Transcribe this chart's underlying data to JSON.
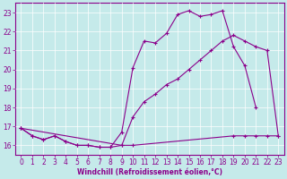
{
  "xlabel": "Windchill (Refroidissement éolien,°C)",
  "bg_color": "#c5eaea",
  "line_color": "#8b008b",
  "grid_color": "#ffffff",
  "xlim": [
    -0.5,
    23.5
  ],
  "ylim": [
    15.5,
    23.5
  ],
  "yticks": [
    16,
    17,
    18,
    19,
    20,
    21,
    22,
    23
  ],
  "xticks": [
    0,
    1,
    2,
    3,
    4,
    5,
    6,
    7,
    8,
    9,
    10,
    11,
    12,
    13,
    14,
    15,
    16,
    17,
    18,
    19,
    20,
    21,
    22,
    23
  ],
  "curve1_x": [
    0,
    1,
    2,
    3,
    4,
    5,
    6,
    7,
    8,
    9,
    10,
    11,
    12,
    13,
    14,
    15,
    16,
    17,
    18,
    19,
    20,
    21
  ],
  "curve1_y": [
    16.9,
    16.5,
    16.3,
    16.5,
    16.2,
    16.0,
    16.0,
    15.9,
    15.9,
    16.7,
    20.1,
    21.5,
    21.4,
    21.9,
    22.9,
    23.1,
    22.8,
    22.9,
    23.1,
    21.2,
    20.2,
    18.0
  ],
  "curve2_x": [
    0,
    1,
    2,
    3,
    4,
    5,
    6,
    7,
    8,
    9,
    10,
    19,
    20,
    21,
    22,
    23
  ],
  "curve2_y": [
    16.9,
    16.5,
    16.3,
    16.5,
    16.2,
    16.0,
    16.0,
    15.9,
    15.9,
    16.0,
    16.0,
    16.5,
    16.5,
    16.5,
    16.5,
    16.5
  ],
  "curve3_x": [
    0,
    9,
    10,
    11,
    12,
    13,
    14,
    15,
    16,
    17,
    18,
    19,
    20,
    21,
    22,
    23
  ],
  "curve3_y": [
    16.9,
    16.0,
    17.5,
    18.3,
    18.7,
    19.2,
    19.5,
    20.0,
    20.5,
    21.0,
    21.5,
    21.8,
    21.5,
    21.2,
    21.0,
    16.5
  ]
}
